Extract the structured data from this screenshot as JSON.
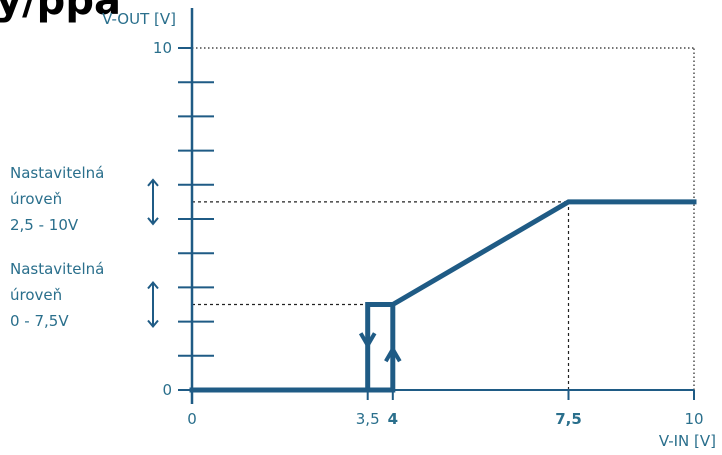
{
  "chart_data": {
    "type": "line",
    "x_axis": {
      "label": "V-IN [V]",
      "range": [
        0,
        10
      ],
      "ticks": [
        {
          "value": 0,
          "label": "0",
          "bold": false
        },
        {
          "value": 3.5,
          "label": "3,5",
          "bold": false
        },
        {
          "value": 4,
          "label": "4",
          "bold": true
        },
        {
          "value": 7.5,
          "label": "7,5",
          "bold": true
        },
        {
          "value": 10,
          "label": "10",
          "bold": false
        }
      ]
    },
    "y_axis": {
      "label": "V-OUT [V]",
      "range": [
        0,
        10
      ],
      "minor_ticks": [
        1,
        2,
        3,
        4,
        5,
        6,
        7,
        8,
        9
      ],
      "ticks": [
        {
          "value": 0,
          "label": "0"
        },
        {
          "value": 10,
          "label": "10"
        }
      ]
    },
    "series": [
      {
        "points": [
          [
            0,
            0
          ],
          [
            3.5,
            0
          ],
          [
            3.5,
            2.5
          ],
          [
            4,
            2.5
          ],
          [
            4,
            0
          ],
          [
            3.5,
            0
          ],
          [
            4,
            0
          ],
          [
            4,
            2.5
          ],
          [
            7.5,
            5.5
          ],
          [
            10,
            5.5
          ]
        ]
      }
    ],
    "hysteresis_arrows": [
      {
        "x": 3.5,
        "direction": "down"
      },
      {
        "x": 4,
        "direction": "up"
      }
    ],
    "reference_lines": [
      {
        "type": "horizontal",
        "y": 10,
        "x_from": 0,
        "x_to": 10,
        "style": "dotted"
      },
      {
        "type": "vertical",
        "x": 10,
        "y_from": 0,
        "y_to": 10,
        "style": "dotted"
      },
      {
        "type": "horizontal",
        "y": 5.5,
        "x_from": 0,
        "x_to": 7.5,
        "style": "dashed"
      },
      {
        "type": "vertical",
        "x": 7.5,
        "y_from": 0,
        "y_to": 5.5,
        "style": "dashed"
      },
      {
        "type": "horizontal",
        "y": 2.5,
        "x_from": 0,
        "x_to": 3.5,
        "style": "dashed"
      }
    ],
    "annotations": [
      {
        "lines": [
          "Nastavitelná",
          "úroveň",
          "2,5 - 10V"
        ],
        "level_y": 5.5
      },
      {
        "lines": [
          "Nastavitelná",
          "úroveň",
          "0 - 7,5V"
        ],
        "level_y": 2.5
      }
    ],
    "header_fragment": "y/ppa",
    "colors": {
      "curve": "#1f5b85",
      "axis": "#1f5b85",
      "text": "#2a6f8c",
      "ref": "#222222"
    },
    "grid": false
  }
}
